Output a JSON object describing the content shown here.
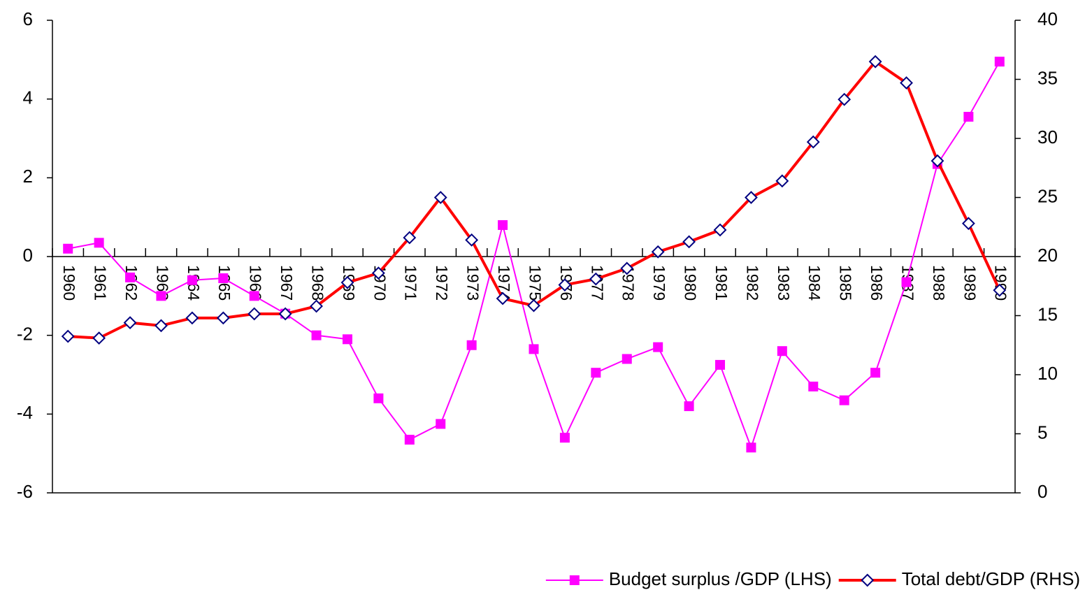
{
  "chart_data": {
    "type": "line",
    "categories": [
      "1960",
      "1961",
      "1962",
      "1963",
      "1964",
      "1965",
      "1966",
      "1967",
      "1968",
      "1969",
      "1970",
      "1971",
      "1972",
      "1973",
      "1974",
      "1975",
      "1976",
      "1977",
      "1978",
      "1979",
      "1980",
      "1981",
      "1982",
      "1983",
      "1984",
      "1985",
      "1986",
      "1987",
      "1988",
      "1989",
      "1990"
    ],
    "series": [
      {
        "name": "Budget surplus /GDP (LHS)",
        "color": "#ff00ff",
        "marker": "square",
        "values": [
          0.2,
          0.35,
          -0.53,
          -1.0,
          -0.6,
          -0.55,
          -1.0,
          -1.45,
          -2.0,
          -2.1,
          -3.6,
          -4.65,
          -4.25,
          -2.25,
          0.8,
          -2.35,
          -4.6,
          -2.95,
          -2.6,
          -2.3,
          -3.8,
          -2.75,
          -4.85,
          -2.4,
          -3.3,
          -3.65,
          -2.95,
          -0.65,
          2.35,
          3.55,
          4.95
        ]
      },
      {
        "name": "Total debt/GDP (RHS)",
        "color": "#ff0000",
        "marker": "diamond",
        "axis": "y2",
        "values": [
          13.25,
          13.1,
          14.4,
          14.15,
          14.8,
          14.8,
          15.15,
          15.15,
          15.8,
          17.8,
          18.6,
          21.6,
          25.0,
          21.4,
          16.45,
          15.85,
          17.6,
          18.1,
          19.0,
          20.4,
          21.25,
          22.25,
          25.0,
          26.4,
          29.7,
          33.3,
          36.5,
          34.7,
          28.1,
          22.8,
          17.15
        ]
      }
    ],
    "ylim": [
      -6,
      6
    ],
    "yticks": [
      -6,
      -4,
      -2,
      0,
      2,
      4,
      6
    ],
    "y2lim": [
      0,
      40
    ],
    "y2ticks": [
      0,
      5,
      10,
      15,
      20,
      25,
      30,
      35,
      40
    ],
    "legend": "bottom-right"
  }
}
